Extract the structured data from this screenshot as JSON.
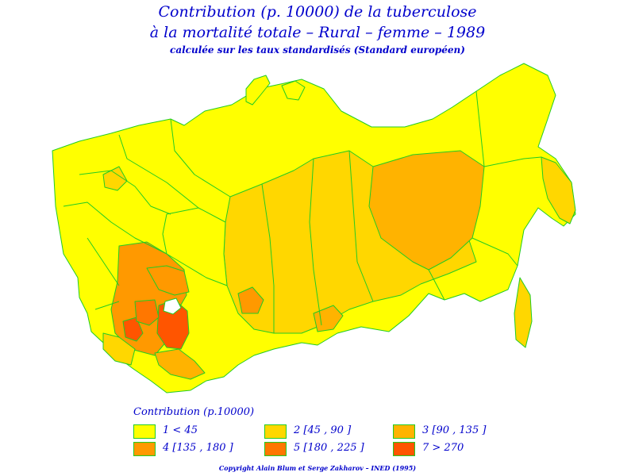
{
  "title": {
    "line1": "Contribution (p. 10000) de la tuberculose",
    "line2": "à la mortalité totale  –  Rural  –  femme  –  1989",
    "subtitle": "calculée sur les taux standardisés (Standard européen)"
  },
  "legend": {
    "title": "Contribution (p.10000)",
    "items": [
      {
        "label": "1  <  45",
        "color": "#ffff00"
      },
      {
        "label": "2 [45 ,  90  ]",
        "color": "#ffd700"
      },
      {
        "label": "3 [90 ,  135  ]",
        "color": "#ffb300"
      },
      {
        "label": "4 [135 ,  180  ]",
        "color": "#ff9900"
      },
      {
        "label": "5 [180 ,  225  ]",
        "color": "#ff7700"
      },
      {
        "label": "7  >  270",
        "color": "#ff5500"
      }
    ]
  },
  "copyright": "Copyright Alain Blum et Serge Zakharov  –  INED (1995)",
  "colors": {
    "border": "#22cc22",
    "text": "#0000cc"
  }
}
